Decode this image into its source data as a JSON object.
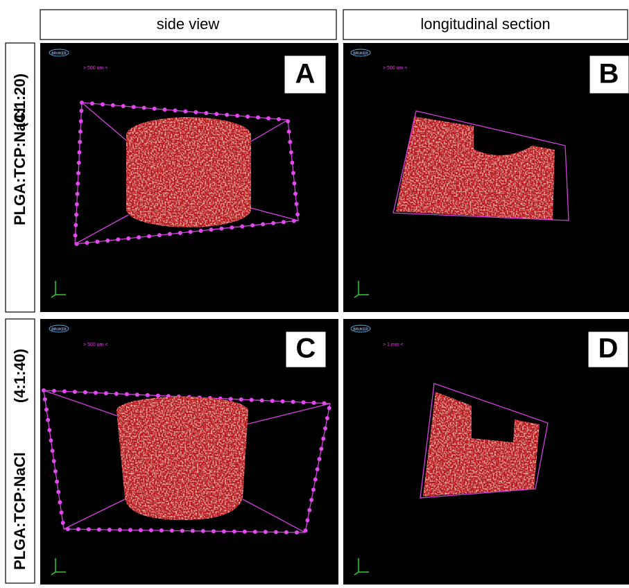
{
  "columns": [
    "side view",
    "longitudinal section"
  ],
  "rows": [
    {
      "label": "PLGA:TCP:NaCl",
      "ratio": "(4:1:20)"
    },
    {
      "label": "PLGA:TCP:NaCl",
      "ratio": "(4:1:40)"
    }
  ],
  "panels": [
    {
      "letter": "A",
      "logo": "BRUKER",
      "scale": "> 500 um <"
    },
    {
      "letter": "B",
      "logo": "BRUKER",
      "scale": "> 500 um <"
    },
    {
      "letter": "C",
      "logo": "BRUKER",
      "scale": "> 500 um <"
    },
    {
      "letter": "D",
      "logo": "BRUKER",
      "scale": "> 1 mm <"
    }
  ]
}
